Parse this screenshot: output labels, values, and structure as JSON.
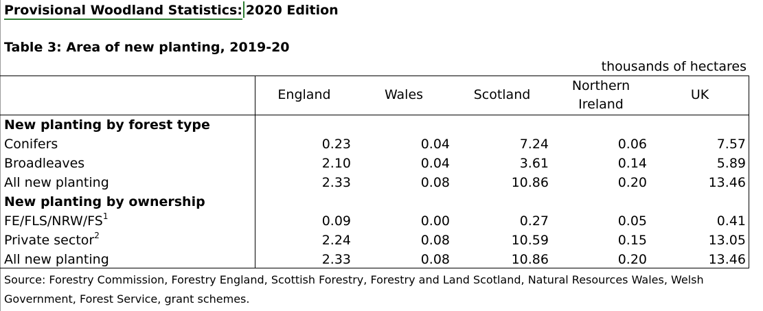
{
  "header": {
    "title_part1": "Provisional Woodland Statistics:",
    "title_part2": "2020 Edition"
  },
  "table": {
    "title": "Table 3: Area of new planting, 2019-20",
    "units": "thousands of hectares",
    "columns": [
      {
        "line1": "England",
        "line2": ""
      },
      {
        "line1": "Wales",
        "line2": ""
      },
      {
        "line1": "Scotland",
        "line2": ""
      },
      {
        "line1": "Northern",
        "line2": "Ireland"
      },
      {
        "line1": "UK",
        "line2": ""
      }
    ],
    "rows": [
      {
        "type": "section",
        "label": "New planting by forest type"
      },
      {
        "type": "data",
        "label": "Conifers",
        "sup": "",
        "values": [
          "0.23",
          "0.04",
          "7.24",
          "0.06",
          "7.57"
        ]
      },
      {
        "type": "data",
        "label": "Broadleaves",
        "sup": "",
        "values": [
          "2.10",
          "0.04",
          "3.61",
          "0.14",
          "5.89"
        ]
      },
      {
        "type": "data",
        "label": "All new planting",
        "sup": "",
        "values": [
          "2.33",
          "0.08",
          "10.86",
          "0.20",
          "13.46"
        ]
      },
      {
        "type": "section",
        "label": "New planting by ownership"
      },
      {
        "type": "data",
        "label": "FE/FLS/NRW/FS",
        "sup": "1",
        "values": [
          "0.09",
          "0.00",
          "0.27",
          "0.05",
          "0.41"
        ]
      },
      {
        "type": "data",
        "label": "Private sector",
        "sup": "2",
        "values": [
          "2.24",
          "0.08",
          "10.59",
          "0.15",
          "13.05"
        ]
      },
      {
        "type": "data",
        "label": "All new planting",
        "sup": "",
        "values": [
          "2.33",
          "0.08",
          "10.86",
          "0.20",
          "13.46"
        ]
      }
    ],
    "source": "Source: Forestry Commission, Forestry England, Scottish Forestry, Forestry and Land Scotland, Natural Resources Wales, Welsh Government, Forest Service, grant schemes."
  }
}
